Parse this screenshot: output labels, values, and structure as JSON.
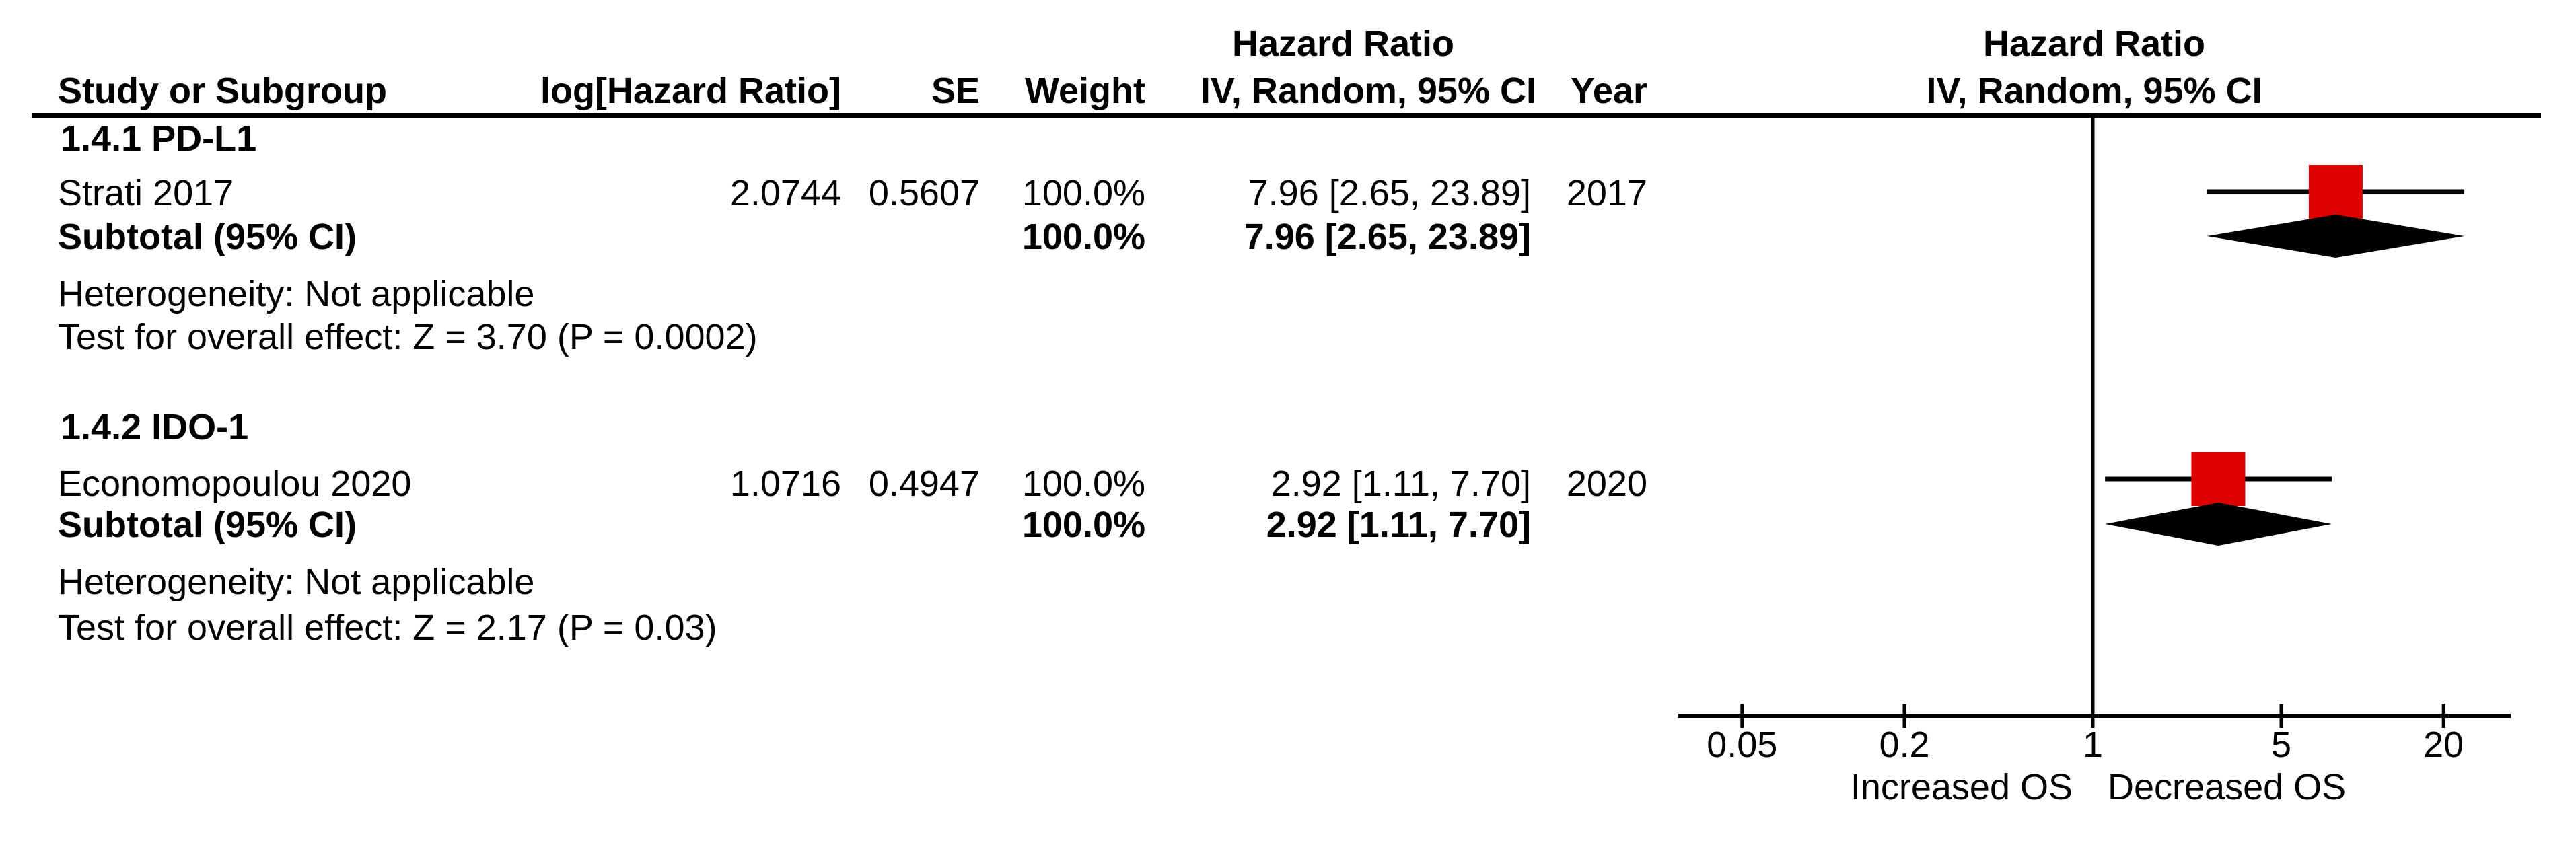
{
  "table": {
    "col_headers": {
      "study": "Study or Subgroup",
      "loghr": "log[Hazard Ratio]",
      "se": "SE",
      "weight": "Weight",
      "ci": "IV, Random, 95% CI",
      "year": "Year",
      "effect_measure_line1": "Hazard Ratio"
    },
    "plot_header": {
      "line1": "Hazard Ratio",
      "line2": "IV, Random, 95% CI"
    },
    "subgroups": [
      {
        "title": "1.4.1 PD-L1",
        "studies": [
          {
            "name": "Strati 2017",
            "loghr": "2.0744",
            "se": "0.5607",
            "weight": "100.0%",
            "ci_text": "7.96 [2.65, 23.89]",
            "year": "2017"
          }
        ],
        "subtotal": {
          "label": "Subtotal (95% CI)",
          "weight": "100.0%",
          "ci_text": "7.96 [2.65, 23.89]"
        },
        "heterogeneity": "Heterogeneity: Not applicable",
        "overall_effect": "Test for overall effect: Z = 3.70 (P = 0.0002)"
      },
      {
        "title": "1.4.2 IDO-1",
        "studies": [
          {
            "name": "Economopoulou 2020",
            "loghr": "1.0716",
            "se": "0.4947",
            "weight": "100.0%",
            "ci_text": "2.92 [1.11, 7.70]",
            "year": "2020"
          }
        ],
        "subtotal": {
          "label": "Subtotal (95% CI)",
          "weight": "100.0%",
          "ci_text": "2.92 [1.11, 7.70]"
        },
        "heterogeneity": "Heterogeneity: Not applicable",
        "overall_effect": "Test for overall effect: Z = 2.17 (P = 0.03)"
      }
    ]
  },
  "chart_data": {
    "type": "forest",
    "x_scale": "log10",
    "effect_measure": "Hazard Ratio",
    "method": "IV, Random, 95% CI",
    "ticks": [
      0.05,
      0.2,
      1,
      5,
      20
    ],
    "tick_labels": [
      "0.05",
      "0.2",
      "1",
      "5",
      "20"
    ],
    "null_value": 1,
    "x_axis_labels": {
      "left": "Increased OS",
      "right": "Decreased OS"
    },
    "marker_color": "#dd0000",
    "diamond_color": "#000000",
    "rows": [
      {
        "kind": "study",
        "subgroup": "PD-L1",
        "label": "Strati 2017",
        "hr": 7.96,
        "low": 2.65,
        "high": 23.89,
        "weight_pct": 100.0,
        "year": 2017
      },
      {
        "kind": "subtotal",
        "subgroup": "PD-L1",
        "label": "Subtotal (95% CI)",
        "hr": 7.96,
        "low": 2.65,
        "high": 23.89
      },
      {
        "kind": "study",
        "subgroup": "IDO-1",
        "label": "Economopoulou 2020",
        "hr": 2.92,
        "low": 1.11,
        "high": 7.7,
        "weight_pct": 100.0,
        "year": 2020
      },
      {
        "kind": "subtotal",
        "subgroup": "IDO-1",
        "label": "Subtotal (95% CI)",
        "hr": 2.92,
        "low": 1.11,
        "high": 7.7
      }
    ]
  }
}
